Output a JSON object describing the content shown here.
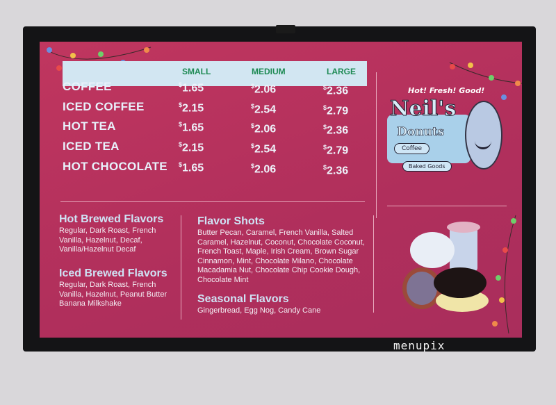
{
  "menu": {
    "sizes": [
      "SMALL",
      "MEDIUM",
      "LARGE"
    ],
    "items": [
      {
        "name": "COFFEE",
        "prices": [
          "1.65",
          "2.06",
          "2.36"
        ]
      },
      {
        "name": "ICED COFFEE",
        "prices": [
          "2.15",
          "2.54",
          "2.79"
        ]
      },
      {
        "name": "HOT TEA",
        "prices": [
          "1.65",
          "2.06",
          "2.36"
        ]
      },
      {
        "name": "ICED TEA",
        "prices": [
          "2.15",
          "2.54",
          "2.79"
        ]
      },
      {
        "name": "HOT CHOCOLATE",
        "prices": [
          "1.65",
          "2.06",
          "2.36"
        ]
      }
    ],
    "currency": "$"
  },
  "flavors": {
    "hot_title": "Hot Brewed Flavors",
    "hot_text": "Regular, Dark Roast, French Vanilla, Hazelnut, Decaf, Vanilla/Hazelnut Decaf",
    "iced_title": "Iced Brewed Flavors",
    "iced_text": "Regular, Dark Roast, French Vanilla, Hazelnut, Peanut Butter Banana Milkshake",
    "shots_title": "Flavor Shots",
    "shots_text": "Butter Pecan, Caramel, French Vanilla, Salted Caramel, Hazelnut, Coconut, Chocolate Coconut, French Toast, Maple, Irish Cream, Brown Sugar Cinnamon, Mint, Chocolate Milano, Chocolate Macadamia Nut, Chocolate Chip Cookie Dough, Chocolate Mint",
    "seasonal_title": "Seasonal Flavors",
    "seasonal_text": "Gingerbread, Egg Nog, Candy Cane"
  },
  "logo": {
    "tagline": "Hot! Fresh! Good!",
    "name1": "Neil's",
    "name2": "Donuts",
    "badge1": "Coffee",
    "badge2": "Baked Goods"
  },
  "watermark": "menupix",
  "colors": {
    "screen": "#b8325e",
    "header_bar": "#d2e6f2",
    "size_label": "#1e8a54",
    "bezel": "#141416"
  }
}
